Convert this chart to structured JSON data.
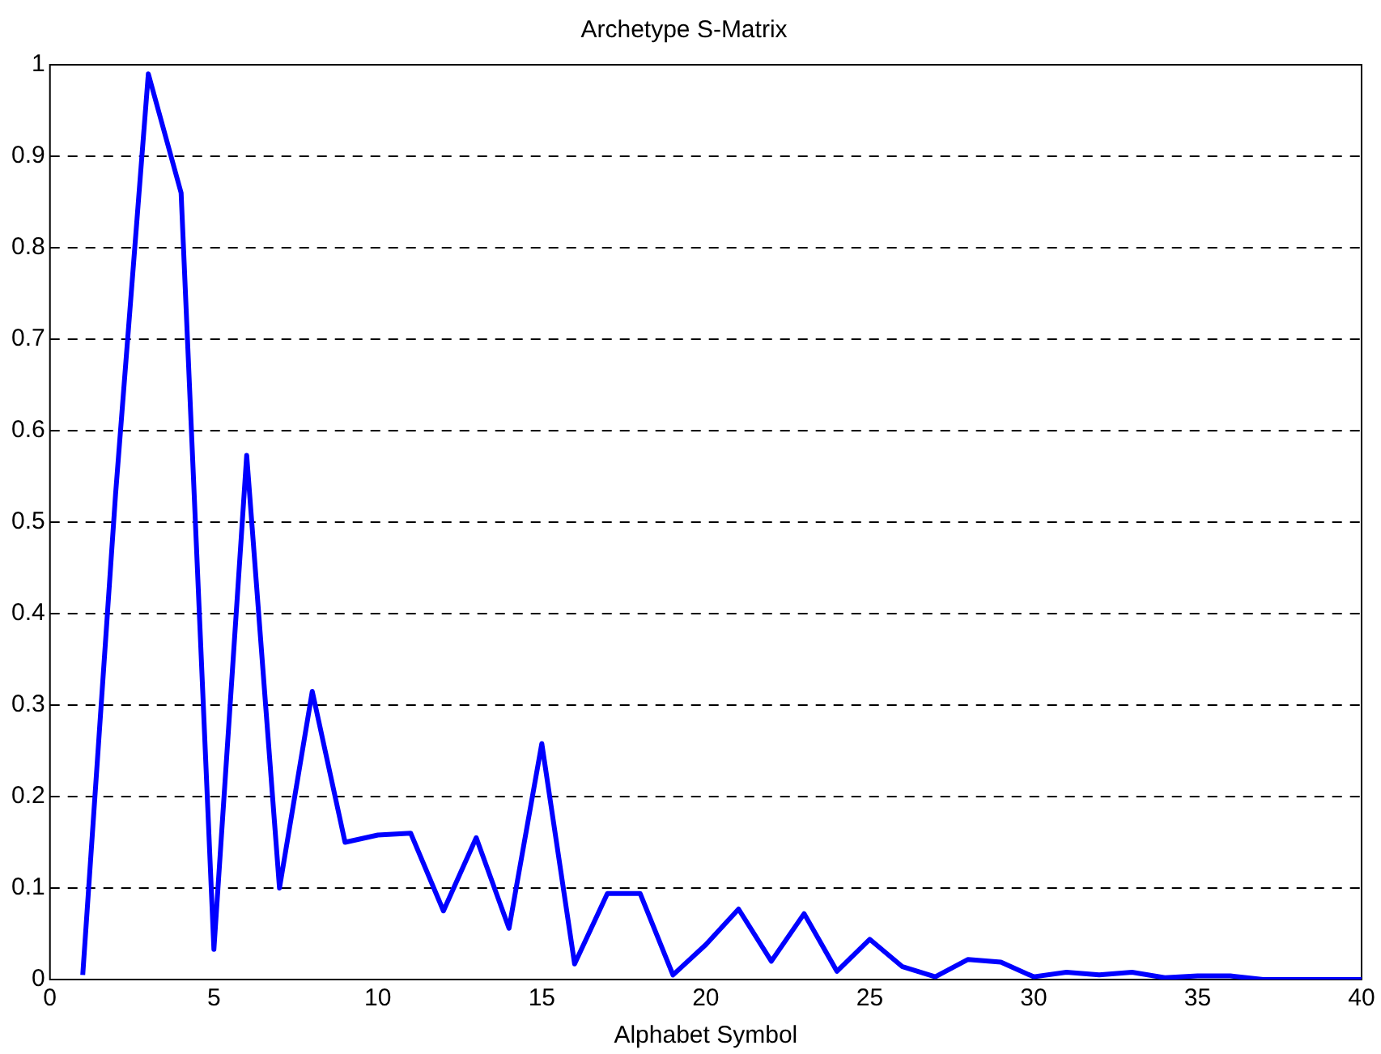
{
  "chart_data": {
    "type": "line",
    "title": "Archetype S-Matrix",
    "xlabel": "Alphabet Symbol",
    "x": [
      1,
      2,
      3,
      4,
      5,
      6,
      7,
      8,
      9,
      10,
      11,
      12,
      13,
      14,
      15,
      16,
      17,
      18,
      19,
      20,
      21,
      22,
      23,
      24,
      25,
      26,
      27,
      28,
      29,
      30,
      31,
      32,
      33,
      34,
      35,
      36,
      37,
      38,
      39,
      40
    ],
    "series": [
      {
        "color": "#0000ff",
        "values": [
          0.005,
          0.53,
          0.99,
          0.86,
          0.033,
          0.573,
          0.1,
          0.315,
          0.15,
          0.158,
          0.16,
          0.075,
          0.155,
          0.056,
          0.258,
          0.017,
          0.094,
          0.094,
          0.005,
          0.038,
          0.077,
          0.02,
          0.072,
          0.009,
          0.044,
          0.014,
          0.003,
          0.022,
          0.019,
          0.003,
          0.008,
          0.005,
          0.008,
          0.002,
          0.004,
          0.004,
          0,
          0,
          0,
          0
        ]
      }
    ],
    "xlim": [
      0,
      40
    ],
    "xticks": [
      0,
      5,
      10,
      15,
      20,
      25,
      30,
      35,
      40
    ],
    "ylim": [
      0,
      1
    ],
    "yticks": [
      0,
      0.1,
      0.2,
      0.3,
      0.4,
      0.5,
      0.6,
      0.7,
      0.8,
      0.9,
      1
    ],
    "grid": "y",
    "line_style": "solid",
    "marker": "none",
    "legend": false
  }
}
